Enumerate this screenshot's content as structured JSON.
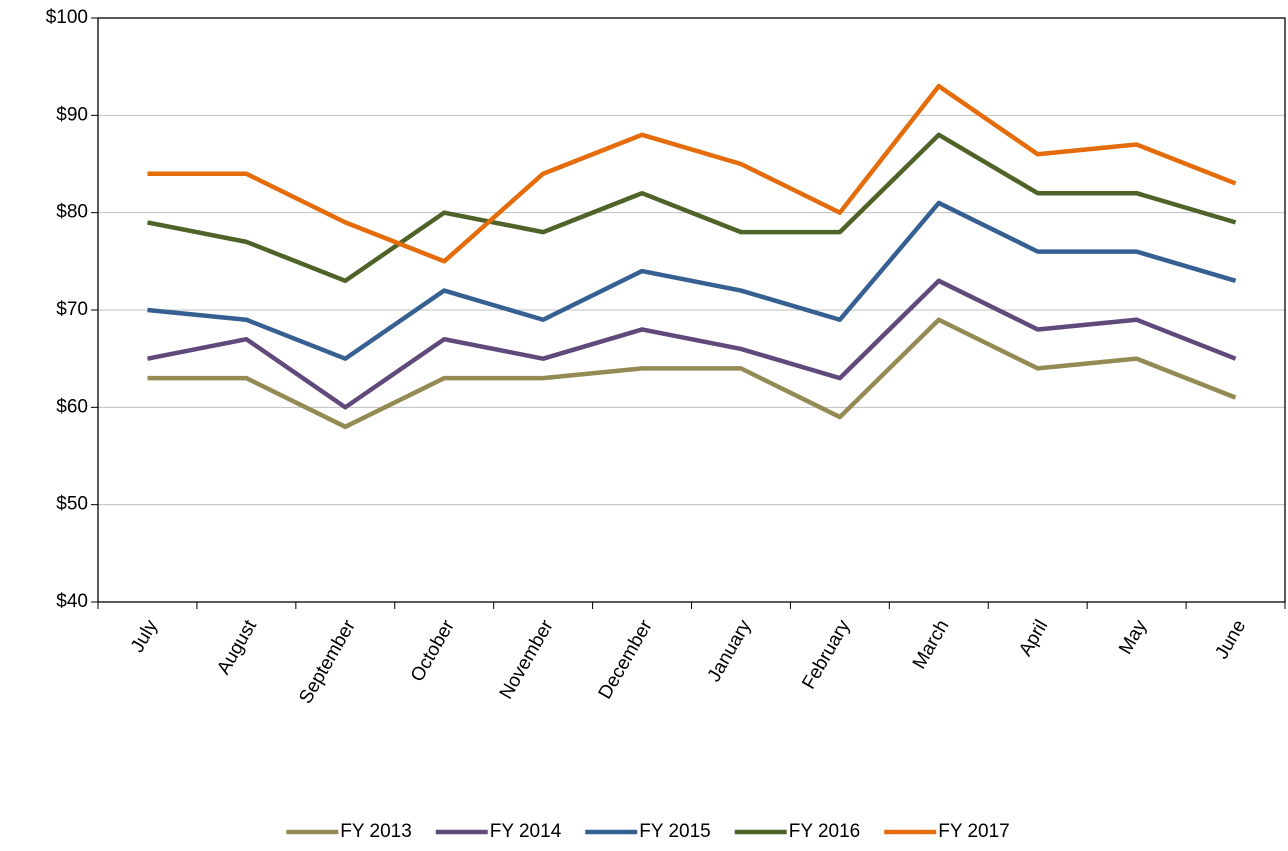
{
  "chart_data": {
    "type": "line",
    "categories": [
      "July",
      "August",
      "September",
      "October",
      "November",
      "December",
      "January",
      "February",
      "March",
      "April",
      "May",
      "June"
    ],
    "series": [
      {
        "name": "FY 2013",
        "color": "#948a54",
        "values": [
          63,
          63,
          58,
          63,
          63,
          64,
          64,
          59,
          69,
          64,
          65,
          61
        ]
      },
      {
        "name": "FY 2014",
        "color": "#604a7b",
        "values": [
          65,
          67,
          60,
          67,
          65,
          68,
          66,
          63,
          73,
          68,
          69,
          65
        ]
      },
      {
        "name": "FY 2015",
        "color": "#376092",
        "values": [
          70,
          69,
          65,
          72,
          69,
          74,
          72,
          69,
          81,
          76,
          76,
          73
        ]
      },
      {
        "name": "FY 2016",
        "color": "#4f6228",
        "values": [
          79,
          77,
          73,
          80,
          78,
          82,
          78,
          78,
          88,
          82,
          82,
          79
        ]
      },
      {
        "name": "FY 2017",
        "color": "#e46c0a",
        "values": [
          84,
          84,
          79,
          75,
          84,
          88,
          85,
          80,
          93,
          86,
          87,
          83
        ]
      }
    ],
    "ylim": [
      40,
      100
    ],
    "yticks": [
      {
        "value": 40,
        "label": "$40"
      },
      {
        "value": 50,
        "label": "$50"
      },
      {
        "value": 60,
        "label": "$60"
      },
      {
        "value": 70,
        "label": "$70"
      },
      {
        "value": 80,
        "label": "$80"
      },
      {
        "value": 90,
        "label": "$90"
      },
      {
        "value": 100,
        "label": "$100"
      }
    ],
    "grid": true,
    "legend": "bottom"
  }
}
